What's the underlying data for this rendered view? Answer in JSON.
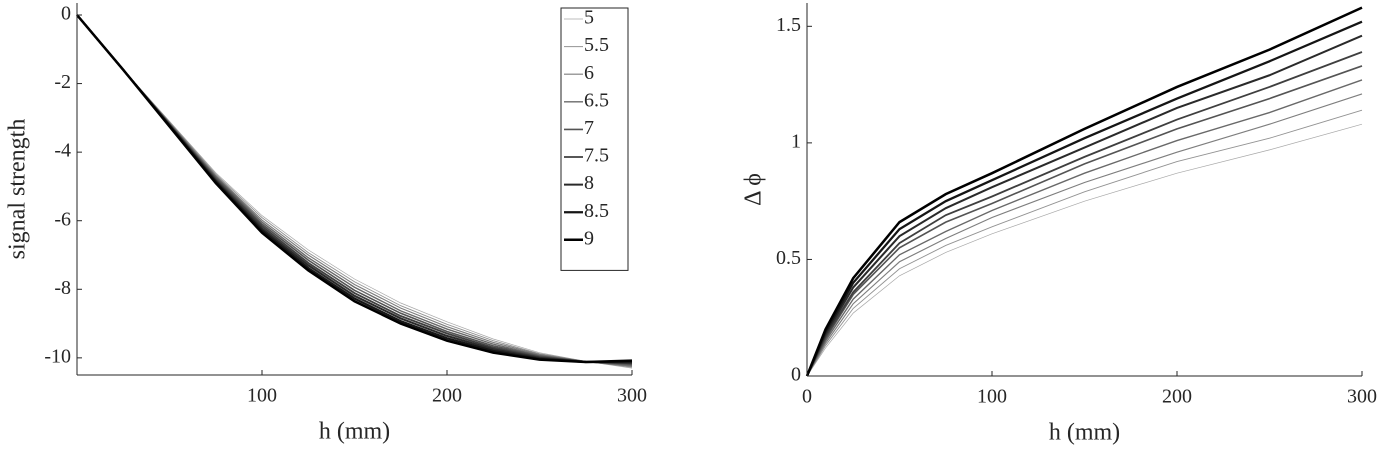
{
  "chart_data": [
    {
      "type": "line",
      "xlabel": "h (mm)",
      "ylabel": "signal strength",
      "x": [
        0,
        25,
        50,
        75,
        100,
        125,
        150,
        175,
        200,
        225,
        250,
        275,
        300
      ],
      "xlim": [
        0,
        300
      ],
      "xticks": [
        100,
        200,
        300
      ],
      "ylim": [
        -10.5,
        0.35
      ],
      "yticks": [
        0,
        -2,
        -4,
        -6,
        -8,
        -10
      ],
      "grid": false,
      "legend": "upper right",
      "series": [
        {
          "name": "5",
          "color": "#a8a8a8",
          "values": [
            0,
            -1.6,
            -3.1,
            -4.6,
            -5.85,
            -6.85,
            -7.7,
            -8.4,
            -8.95,
            -9.45,
            -9.85,
            -10.1,
            -10.3
          ]
        },
        {
          "name": "5.5",
          "color": "#939393",
          "values": [
            0,
            -1.6,
            -3.12,
            -4.64,
            -5.91,
            -6.93,
            -7.78,
            -8.48,
            -9.02,
            -9.5,
            -9.88,
            -10.1,
            -10.27
          ]
        },
        {
          "name": "6",
          "color": "#7e7e7e",
          "values": [
            0,
            -1.6,
            -3.14,
            -4.68,
            -5.98,
            -7.0,
            -7.86,
            -8.55,
            -9.09,
            -9.55,
            -9.9,
            -10.11,
            -10.25
          ]
        },
        {
          "name": "6.5",
          "color": "#696969",
          "values": [
            0,
            -1.6,
            -3.16,
            -4.71,
            -6.04,
            -7.08,
            -7.94,
            -8.63,
            -9.16,
            -9.6,
            -9.93,
            -10.11,
            -10.22
          ]
        },
        {
          "name": "7",
          "color": "#545454",
          "values": [
            0,
            -1.6,
            -3.18,
            -4.75,
            -6.1,
            -7.15,
            -8.03,
            -8.7,
            -9.23,
            -9.65,
            -9.95,
            -10.11,
            -10.19
          ]
        },
        {
          "name": "7.5",
          "color": "#3f3f3f",
          "values": [
            0,
            -1.6,
            -3.19,
            -4.79,
            -6.16,
            -7.23,
            -8.11,
            -8.78,
            -9.29,
            -9.7,
            -9.98,
            -10.11,
            -10.16
          ]
        },
        {
          "name": "8",
          "color": "#2a2a2a",
          "values": [
            0,
            -1.6,
            -3.21,
            -4.83,
            -6.23,
            -7.3,
            -8.19,
            -8.85,
            -9.36,
            -9.75,
            -10.0,
            -10.12,
            -10.14
          ]
        },
        {
          "name": "8.5",
          "color": "#151515",
          "values": [
            0,
            -1.6,
            -3.23,
            -4.86,
            -6.29,
            -7.38,
            -8.27,
            -8.93,
            -9.43,
            -9.8,
            -10.03,
            -10.12,
            -10.11
          ]
        },
        {
          "name": "9",
          "color": "#000000",
          "values": [
            0,
            -1.6,
            -3.25,
            -4.9,
            -6.35,
            -7.45,
            -8.35,
            -9.0,
            -9.5,
            -9.85,
            -10.05,
            -10.12,
            -10.08
          ]
        }
      ]
    },
    {
      "type": "line",
      "xlabel": "h (mm)",
      "ylabel": "Δ ϕ",
      "x": [
        0,
        10,
        25,
        50,
        75,
        100,
        150,
        200,
        250,
        300
      ],
      "xlim": [
        0,
        300
      ],
      "xticks": [
        0,
        100,
        200,
        300
      ],
      "ylim": [
        0,
        1.6
      ],
      "yticks": [
        0,
        0.5,
        1,
        1.5
      ],
      "grid": false,
      "series": [
        {
          "color": "#a8a8a8",
          "values": [
            0,
            0.12,
            0.27,
            0.43,
            0.53,
            0.61,
            0.75,
            0.87,
            0.97,
            1.08
          ]
        },
        {
          "color": "#939393",
          "values": [
            0,
            0.13,
            0.29,
            0.46,
            0.56,
            0.64,
            0.79,
            0.92,
            1.02,
            1.14
          ]
        },
        {
          "color": "#7e7e7e",
          "values": [
            0,
            0.14,
            0.31,
            0.49,
            0.59,
            0.68,
            0.83,
            0.96,
            1.08,
            1.21
          ]
        },
        {
          "color": "#696969",
          "values": [
            0,
            0.15,
            0.33,
            0.52,
            0.62,
            0.71,
            0.87,
            1.01,
            1.13,
            1.27
          ]
        },
        {
          "color": "#545454",
          "values": [
            0,
            0.16,
            0.35,
            0.55,
            0.66,
            0.74,
            0.91,
            1.06,
            1.19,
            1.33
          ]
        },
        {
          "color": "#3f3f3f",
          "values": [
            0,
            0.17,
            0.36,
            0.57,
            0.69,
            0.77,
            0.94,
            1.1,
            1.24,
            1.39
          ]
        },
        {
          "color": "#2a2a2a",
          "values": [
            0,
            0.18,
            0.38,
            0.6,
            0.72,
            0.81,
            0.98,
            1.15,
            1.29,
            1.46
          ]
        },
        {
          "color": "#151515",
          "values": [
            0,
            0.19,
            0.4,
            0.63,
            0.75,
            0.84,
            1.02,
            1.19,
            1.35,
            1.52
          ]
        },
        {
          "color": "#000000",
          "values": [
            0,
            0.2,
            0.42,
            0.66,
            0.78,
            0.87,
            1.06,
            1.24,
            1.4,
            1.58
          ]
        }
      ]
    }
  ]
}
